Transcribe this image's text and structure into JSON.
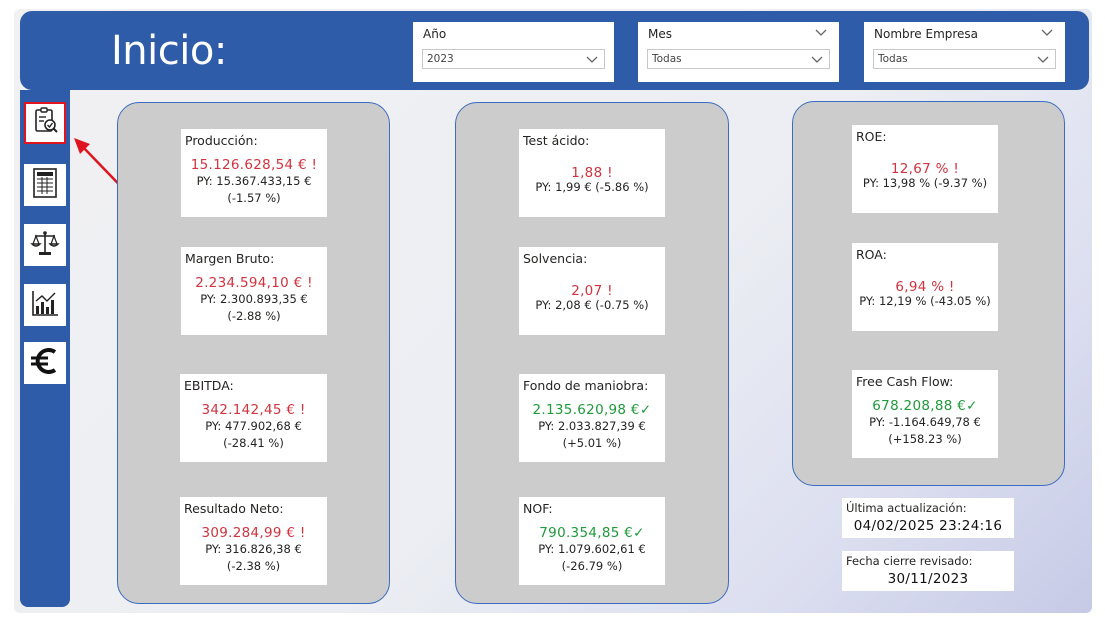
{
  "header": {
    "title": "Inicio:"
  },
  "filters": [
    {
      "label": "Año",
      "value": "2023"
    },
    {
      "label": "Mes",
      "value": "Todas"
    },
    {
      "label": "Nombre Empresa",
      "value": "Todas"
    }
  ],
  "sidebar": {
    "items": [
      {
        "icon": "report-search-icon",
        "active": true
      },
      {
        "icon": "spreadsheet-icon",
        "active": false
      },
      {
        "icon": "balance-scale-icon",
        "active": false
      },
      {
        "icon": "bar-chart-icon",
        "active": false
      },
      {
        "icon": "euro-icon",
        "active": false
      }
    ]
  },
  "panels": {
    "left": [
      {
        "title": "Producción:",
        "value": "15.126.628,54 €",
        "mark": "!",
        "status": "down",
        "py": "PY: 15.367.433,15 €",
        "pct": "(-1.57 %)"
      },
      {
        "title": "Margen Bruto:",
        "value": "2.234.594,10 €",
        "mark": "!",
        "status": "down",
        "py": "PY: 2.300.893,35 €",
        "pct": "(-2.88 %)"
      },
      {
        "title": "EBITDA:",
        "value": "342.142,45 €",
        "mark": "!",
        "status": "down",
        "py": "PY: 477.902,68 €",
        "pct": "(-28.41 %)"
      },
      {
        "title": "Resultado Neto:",
        "value": "309.284,99 €",
        "mark": "!",
        "status": "down",
        "py": "PY: 316.826,38 €",
        "pct": "(-2.38 %)"
      }
    ],
    "middle": [
      {
        "title": "Test ácido:",
        "value": "1,88",
        "mark": "!",
        "status": "down",
        "py": "PY: 1,99 € (-5.86 %)"
      },
      {
        "title": "Solvencia:",
        "value": "2,07",
        "mark": "!",
        "status": "down",
        "py": "PY: 2,08 € (-0.75 %)"
      },
      {
        "title": "Fondo de maniobra:",
        "value": "2.135.620,98 €",
        "mark": "✓",
        "status": "up",
        "py": "PY: 2.033.827,39 €",
        "pct": "(+5.01 %)"
      },
      {
        "title": "NOF:",
        "value": "790.354,85 €",
        "mark": "✓",
        "status": "up",
        "py": "PY: 1.079.602,61 €",
        "pct": "(-26.79 %)"
      }
    ],
    "right": [
      {
        "title": "ROE:",
        "value": "12,67 %",
        "mark": "!",
        "status": "down",
        "py": "PY: 13,98 % (-9.37 %)"
      },
      {
        "title": "ROA:",
        "value": "6,94 %",
        "mark": "!",
        "status": "down",
        "py": "PY: 12,19 % (-43.05 %)"
      },
      {
        "title": "Free Cash Flow:",
        "value": "678.208,88 €",
        "mark": "✓",
        "status": "up",
        "py": "PY: -1.164.649,78 €",
        "pct": "(+158.23 %)"
      }
    ]
  },
  "info": {
    "last_update_label": "Última actualización:",
    "last_update_value": "04/02/2025 23:24:16",
    "close_label": "Fecha cierre revisado:",
    "close_value": "30/11/2023"
  },
  "colors": {
    "header": "#2f5ca8",
    "negative": "#d1333f",
    "positive": "#1e9a3a",
    "highlight": "#e0141e"
  }
}
